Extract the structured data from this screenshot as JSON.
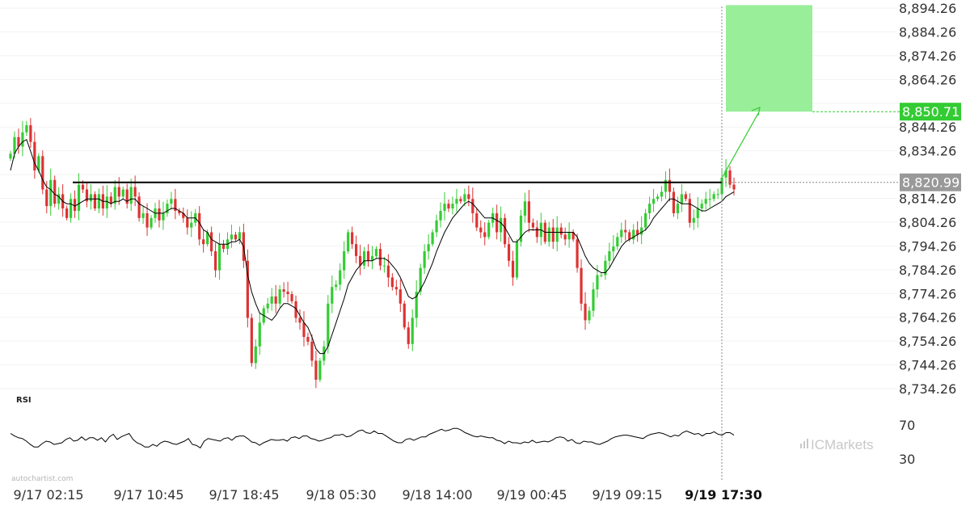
{
  "chart_data": {
    "type": "candlestick",
    "y_axis_ticks": [
      "8,894.26",
      "8,884.26",
      "8,874.26",
      "8,864.26",
      "8,850.71",
      "8,844.26",
      "8,834.26",
      "8,820.99",
      "8,814.26",
      "8,804.26",
      "8,794.26",
      "8,784.26",
      "8,774.26",
      "8,764.26",
      "8,754.26",
      "8,744.26",
      "8,734.26"
    ],
    "y_range": [
      8730,
      8897
    ],
    "x_axis_ticks": [
      "9/17 02:15",
      "9/17 10:45",
      "9/17 18:45",
      "9/18 05:30",
      "9/18 14:00",
      "9/19 00:45",
      "9/19 09:15",
      "9/19 17:30"
    ],
    "highlighted_x_tick": "9/19 17:30",
    "support_resistance_level": 8820.99,
    "target_level": 8850.71,
    "target_level_label": "8,850.71",
    "current_level_label": "8,820.99",
    "target_zone": {
      "low": 8850.71,
      "high": 8895.5
    },
    "close_series": [
      8833,
      8840,
      8836,
      8842,
      8845,
      8838,
      8826,
      8832,
      8818,
      8811,
      8822,
      8812,
      8816,
      8810,
      8806,
      8814,
      8809,
      8820,
      8818,
      8813,
      8816,
      8810,
      8816,
      8810,
      8815,
      8812,
      8819,
      8815,
      8818,
      8812,
      8819,
      8815,
      8806,
      8808,
      8802,
      8806,
      8810,
      8805,
      8808,
      8812,
      8814,
      8809,
      8808,
      8806,
      8802,
      8804,
      8808,
      8797,
      8795,
      8800,
      8792,
      8784,
      8795,
      8793,
      8797,
      8799,
      8797,
      8800,
      8788,
      8764,
      8745,
      8752,
      8762,
      8768,
      8770,
      8773,
      8770,
      8776,
      8775,
      8774,
      8771,
      8764,
      8762,
      8756,
      8754,
      8746,
      8738,
      8746,
      8752,
      8770,
      8777,
      8778,
      8784,
      8792,
      8800,
      8795,
      8790,
      8786,
      8792,
      8788,
      8790,
      8793,
      8786,
      8786,
      8781,
      8777,
      8776,
      8770,
      8760,
      8753,
      8764,
      8775,
      8785,
      8792,
      8795,
      8800,
      8805,
      8809,
      8812,
      8810,
      8812,
      8814,
      8813,
      8816,
      8814,
      8808,
      8802,
      8800,
      8798,
      8804,
      8808,
      8800,
      8806,
      8795,
      8788,
      8781,
      8796,
      8807,
      8813,
      8804,
      8802,
      8798,
      8804,
      8796,
      8802,
      8796,
      8802,
      8799,
      8797,
      8800,
      8797,
      8785,
      8770,
      8763,
      8767,
      8776,
      8782,
      8782,
      8788,
      8792,
      8794,
      8798,
      8801,
      8800,
      8797,
      8801,
      8799,
      8802,
      8808,
      8812,
      8814,
      8815,
      8817,
      8822,
      8817,
      8808,
      8812,
      8816,
      8814,
      8804,
      8806,
      8810,
      8812,
      8814,
      8814,
      8816,
      8816,
      8823,
      8826,
      8820,
      8818
    ],
    "sma_series": [
      8826,
      8833,
      8836,
      8838,
      8839,
      8834,
      8829,
      8826,
      8822,
      8819,
      8818,
      8816,
      8815,
      8813,
      8812,
      8812,
      8811,
      8812,
      8813,
      8814,
      8814,
      8814,
      8814,
      8813,
      8813,
      8812,
      8813,
      8813,
      8814,
      8813,
      8814,
      8814,
      8812,
      8811,
      8810,
      8809,
      8808,
      8808,
      8808,
      8809,
      8810,
      8810,
      8809,
      8808,
      8806,
      8806,
      8806,
      8804,
      8801,
      8800,
      8797,
      8796,
      8795,
      8795,
      8795,
      8796,
      8796,
      8797,
      8794,
      8782,
      8775,
      8770,
      8766,
      8765,
      8764,
      8763,
      8765,
      8768,
      8770,
      8770,
      8769,
      8768,
      8765,
      8762,
      8760,
      8756,
      8751,
      8749,
      8749,
      8752,
      8757,
      8762,
      8767,
      8772,
      8778,
      8781,
      8784,
      8786,
      8788,
      8788,
      8788,
      8789,
      8789,
      8789,
      8788,
      8786,
      8784,
      8781,
      8777,
      8773,
      8772,
      8773,
      8776,
      8779,
      8783,
      8787,
      8792,
      8796,
      8800,
      8803,
      8806,
      8808,
      8810,
      8812,
      8813,
      8812,
      8810,
      8808,
      8806,
      8806,
      8806,
      8805,
      8804,
      8802,
      8799,
      8796,
      8796,
      8798,
      8800,
      8801,
      8801,
      8801,
      8801,
      8800,
      8800,
      8800,
      8800,
      8800,
      8800,
      8800,
      8800,
      8798,
      8794,
      8790,
      8787,
      8785,
      8784,
      8783,
      8783,
      8785,
      8788,
      8791,
      8794,
      8796,
      8797,
      8798,
      8799,
      8800,
      8801,
      8803,
      8806,
      8808,
      8810,
      8812,
      8814,
      8814,
      8813,
      8812,
      8812,
      8812,
      8811,
      8810,
      8809,
      8809,
      8810,
      8811,
      8812,
      8813,
      8815,
      8816,
      8817
    ],
    "rsi": {
      "label": "RSI",
      "ticks": [
        "70",
        "30"
      ],
      "values": [
        60,
        57,
        55,
        54,
        51,
        47,
        44,
        44,
        48,
        51,
        50,
        47,
        48,
        49,
        53,
        55,
        51,
        52,
        56,
        52,
        55,
        55,
        52,
        55,
        50,
        56,
        59,
        53,
        56,
        58,
        60,
        53,
        49,
        47,
        44,
        44,
        47,
        45,
        49,
        51,
        50,
        48,
        47,
        49,
        51,
        54,
        47,
        46,
        43,
        51,
        54,
        53,
        52,
        51,
        54,
        55,
        52,
        56,
        57,
        57,
        54,
        50,
        49,
        46,
        49,
        51,
        53,
        52,
        52,
        53,
        51,
        55,
        56,
        54,
        57,
        57,
        54,
        53,
        51,
        52,
        54,
        55,
        58,
        58,
        59,
        56,
        57,
        60,
        63,
        64,
        61,
        60,
        63,
        60,
        60,
        57,
        54,
        51,
        49,
        49,
        53,
        54,
        52,
        54,
        56,
        56,
        59,
        61,
        63,
        65,
        63,
        64,
        66,
        66,
        64,
        61,
        59,
        57,
        56,
        57,
        56,
        55,
        55,
        52,
        51,
        48,
        51,
        49,
        49,
        48,
        50,
        49,
        52,
        49,
        50,
        51,
        50,
        52,
        55,
        56,
        55,
        51,
        53,
        49,
        48,
        51,
        50,
        50,
        48,
        47,
        49,
        51,
        54,
        56,
        57,
        58,
        58,
        57,
        56,
        55,
        54,
        57,
        59,
        60,
        61,
        60,
        58,
        56,
        58,
        57,
        61,
        63,
        61,
        59,
        60,
        57,
        60,
        60,
        62,
        59,
        58,
        61,
        61,
        58
      ]
    }
  },
  "branding": {
    "watermark": "autochartist.com",
    "brand": "ICMarkets",
    "brand_icon": "bar-chart-icon"
  },
  "colors": {
    "up": "#33cc33",
    "down": "#dd3333",
    "target_zone": "#99ee99",
    "target_tag": "#33cc33",
    "current_tag": "#999999",
    "sma": "#000000",
    "level": "#000000"
  }
}
